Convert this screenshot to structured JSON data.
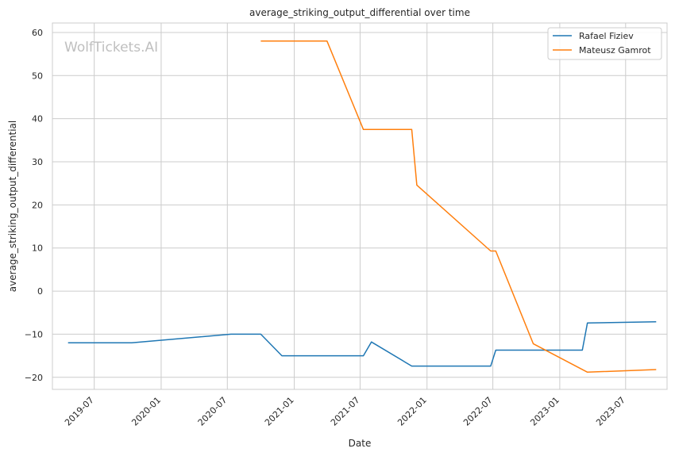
{
  "watermark": "WolfTickets.AI",
  "chart_data": {
    "type": "line",
    "title": "average_striking_output_differential over time",
    "xlabel": "Date",
    "ylabel": "average_striking_output_differential",
    "x_ticks": [
      "2019-07",
      "2020-01",
      "2020-07",
      "2021-01",
      "2021-07",
      "2022-01",
      "2022-07",
      "2023-01",
      "2023-07"
    ],
    "y_ticks": [
      -20,
      -10,
      0,
      10,
      20,
      30,
      40,
      50,
      60
    ],
    "xlim": [
      "2019-03-08",
      "2023-10-23"
    ],
    "ylim": [
      -22.8,
      62.2
    ],
    "grid": true,
    "legend_position": "top-right",
    "series": [
      {
        "name": "Rafael Fiziev",
        "color": "#1f77b4",
        "points": [
          [
            "2019-04-20",
            -12.0
          ],
          [
            "2019-10-12",
            -12.0
          ],
          [
            "2020-07-11",
            -10.0
          ],
          [
            "2020-10-01",
            -10.0
          ],
          [
            "2020-11-28",
            -15.0
          ],
          [
            "2021-07-10",
            -15.0
          ],
          [
            "2021-08-01",
            -11.8
          ],
          [
            "2021-11-20",
            -17.4
          ],
          [
            "2022-06-25",
            -17.4
          ],
          [
            "2022-07-09",
            -13.7
          ],
          [
            "2023-03-04",
            -13.7
          ],
          [
            "2023-03-18",
            -7.4
          ],
          [
            "2023-09-23",
            -7.1
          ]
        ]
      },
      {
        "name": "Mateusz Gamrot",
        "color": "#ff7f0e",
        "points": [
          [
            "2020-10-01",
            58.0
          ],
          [
            "2021-04-01",
            58.0
          ],
          [
            "2021-07-10",
            37.5
          ],
          [
            "2021-11-20",
            37.5
          ],
          [
            "2021-12-04",
            24.6
          ],
          [
            "2022-06-25",
            9.3
          ],
          [
            "2022-07-09",
            9.3
          ],
          [
            "2022-10-20",
            -12.2
          ],
          [
            "2023-03-18",
            -18.8
          ],
          [
            "2023-09-23",
            -18.2
          ]
        ]
      }
    ]
  }
}
